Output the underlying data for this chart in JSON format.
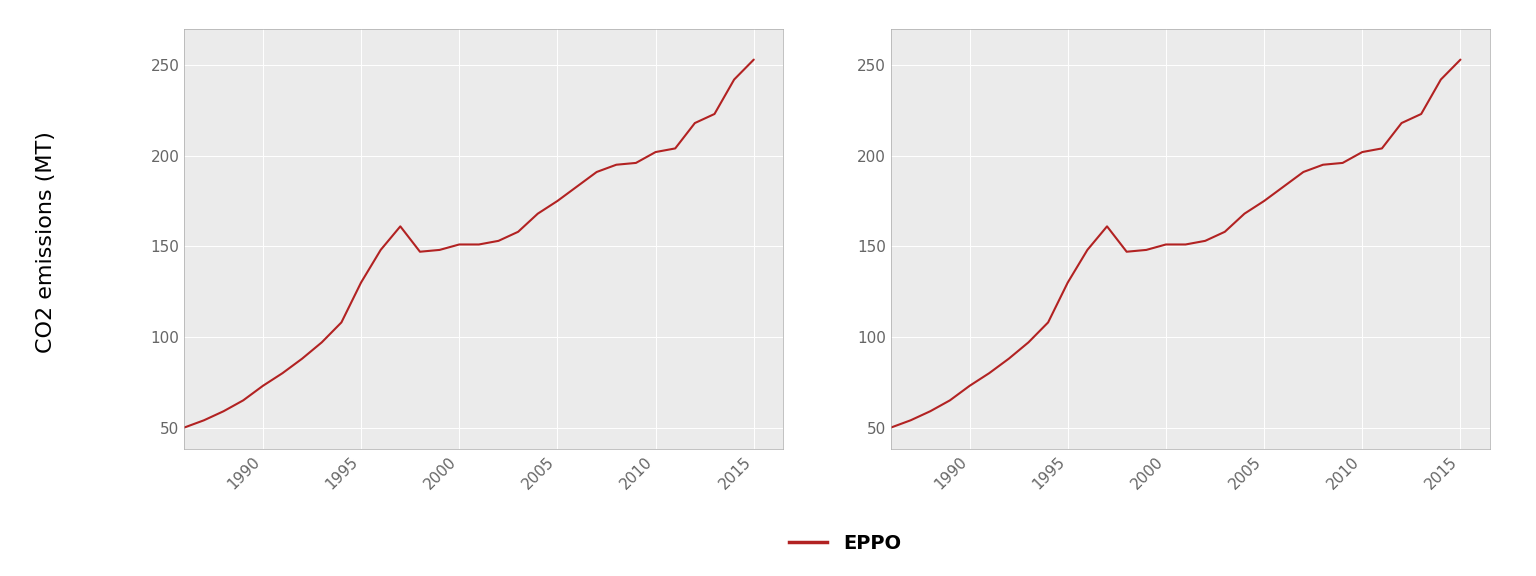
{
  "years": [
    1986,
    1987,
    1988,
    1989,
    1990,
    1991,
    1992,
    1993,
    1994,
    1995,
    1996,
    1997,
    1998,
    1999,
    2000,
    2001,
    2002,
    2003,
    2004,
    2005,
    2006,
    2007,
    2008,
    2009,
    2010,
    2011,
    2012,
    2013,
    2014,
    2015
  ],
  "eppo_values": [
    50,
    54,
    59,
    65,
    73,
    80,
    88,
    97,
    108,
    130,
    148,
    161,
    147,
    148,
    151,
    151,
    153,
    158,
    168,
    175,
    183,
    191,
    195,
    196,
    202,
    204,
    218,
    223,
    242,
    253
  ],
  "line_color": "#b22222",
  "line_width": 1.5,
  "ylabel": "CO2 emissions (MT)",
  "yticks": [
    50,
    100,
    150,
    200,
    250
  ],
  "xticks": [
    1990,
    1995,
    2000,
    2005,
    2010,
    2015
  ],
  "ylim": [
    38,
    270
  ],
  "xlim": [
    1986.0,
    2016.5
  ],
  "legend_label": "EPPO",
  "panel_bg": "#ebebeb",
  "grid_color": "white",
  "grid_linewidth": 0.7,
  "tick_label_color": "#666666",
  "tick_label_size": 11,
  "ylabel_size": 16,
  "ylabel_color": "black",
  "legend_fontsize": 14,
  "fig_bg": "white"
}
